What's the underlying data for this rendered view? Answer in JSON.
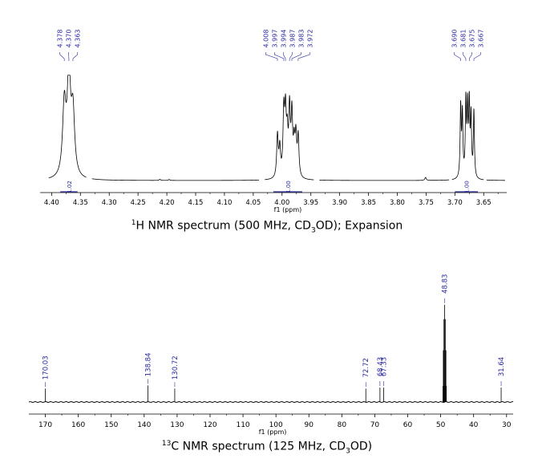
{
  "chart_data": [
    {
      "type": "line",
      "xlabel": "f1 (ppm)",
      "xlim": [
        4.42,
        3.61
      ],
      "x_ticks": [
        "4.40",
        "4.35",
        "4.30",
        "4.25",
        "4.20",
        "4.15",
        "4.10",
        "4.05",
        "4.00",
        "3.95",
        "3.90",
        "3.85",
        "3.80",
        "3.75",
        "3.70",
        "3.65"
      ],
      "peak_labels": [
        "4.378",
        "4.370",
        "4.363",
        "4.008",
        "3.997",
        "3.994",
        "3.987",
        "3.983",
        "3.972",
        "3.690",
        "3.681",
        "3.675",
        "3.667"
      ],
      "integrals": [
        {
          "range": [
            4.385,
            4.355
          ],
          "label": "1.02"
        },
        {
          "range": [
            4.015,
            3.965
          ],
          "label": "1.00"
        },
        {
          "range": [
            3.7,
            3.66
          ],
          "label": "1.00"
        }
      ],
      "caption": {
        "pre": "H NMR spectrum (500 MHz, CD",
        "sub": "3",
        "post": "OD); Expansion",
        "iso": "1"
      }
    },
    {
      "type": "line",
      "xlabel": "f1 (ppm)",
      "xlim": [
        175,
        28
      ],
      "x_ticks": [
        "170",
        "160",
        "150",
        "140",
        "130",
        "120",
        "110",
        "100",
        "90",
        "80",
        "70",
        "60",
        "50",
        "40",
        "30"
      ],
      "peak_labels": [
        "170.03",
        "138.84",
        "130.72",
        "72.72",
        "68.43",
        "67.33",
        "48.83",
        "31.64"
      ],
      "caption": {
        "pre": "C NMR spectrum (125 MHz, CD",
        "sub": "3",
        "post": "OD)",
        "iso": "13"
      }
    }
  ]
}
